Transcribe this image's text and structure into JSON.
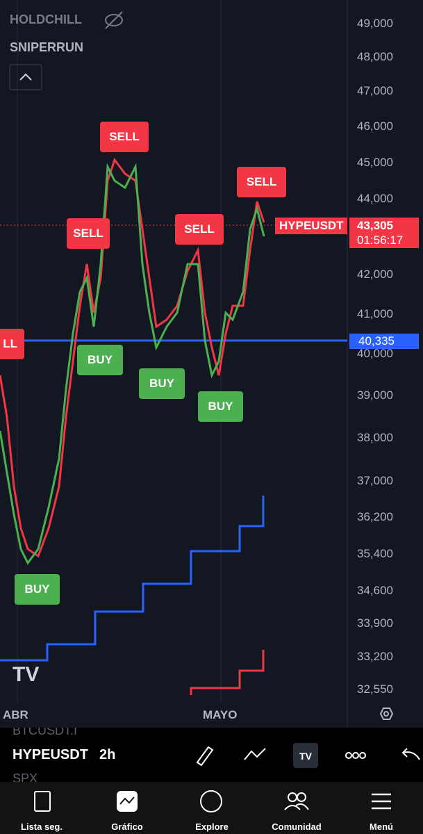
{
  "indicators": [
    "HOLDCHILL",
    "SNIPERRUN"
  ],
  "price_axis": [
    "49,000",
    "48,000",
    "47,000",
    "46,000",
    "45,000",
    "44,000",
    "42,000",
    "41,000",
    "40,000",
    "39,000",
    "38,000",
    "37,000",
    "36,200",
    "35,400",
    "34,600",
    "33,900",
    "33,200",
    "32,550"
  ],
  "symbol_tag": {
    "symbol": "HYPEUSDT",
    "price": "43,305",
    "countdown": "01:56:17"
  },
  "line_tag": "40,335",
  "signals": [
    "LL",
    "SELL",
    "SELL",
    "SELL",
    "SELL",
    "BUY",
    "BUY",
    "BUY",
    "BUY"
  ],
  "time_axis": [
    "ABR",
    "MAYO"
  ],
  "toolbar": {
    "watch_above": "BTCUSDT.I",
    "symbol": "HYPEUSDT",
    "interval": "2h",
    "watch_below": "SPX"
  },
  "nav": [
    "Lista seg.",
    "Gráfico",
    "Explore",
    "Comunidad",
    "Menú"
  ]
}
